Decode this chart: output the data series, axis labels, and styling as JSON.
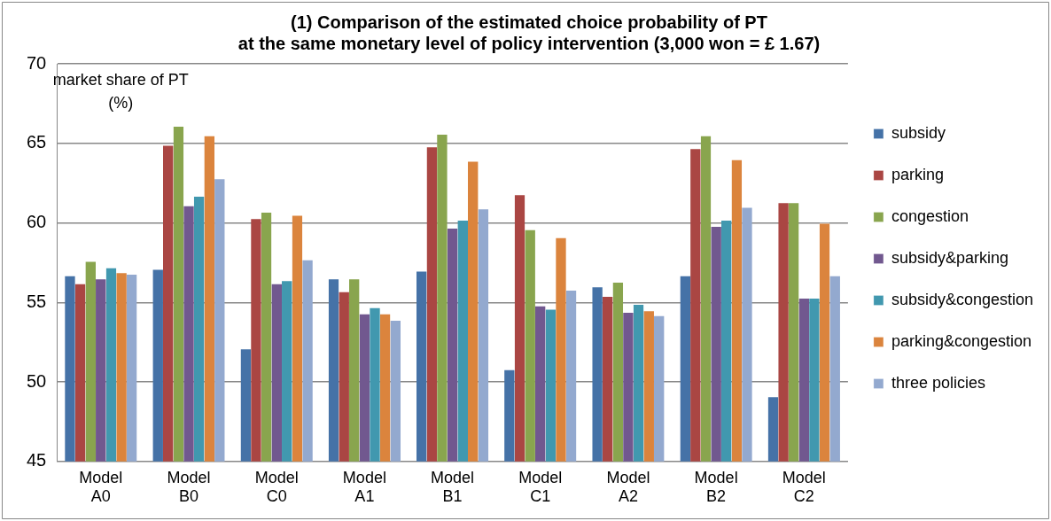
{
  "chart_data": {
    "type": "bar",
    "title": "(1) Comparison of the estimated choice probability of PT\nat the same monetary level of policy intervention (3,000 won = £ 1.67)",
    "ylabel": "market share of PT\n(%)",
    "categories": [
      "Model A0",
      "Model B0",
      "Model C0",
      "Model A1",
      "Model B1",
      "Model C1",
      "Model A2",
      "Model B2",
      "Model C2"
    ],
    "series": [
      {
        "name": "subsidy",
        "color": "#4572a7",
        "values": [
          56.7,
          57.1,
          52.1,
          56.5,
          57.0,
          50.8,
          56.0,
          56.7,
          49.1
        ]
      },
      {
        "name": "parking",
        "color": "#aa4643",
        "values": [
          56.2,
          64.9,
          60.3,
          55.7,
          64.8,
          61.8,
          55.4,
          64.7,
          61.3
        ]
      },
      {
        "name": "congestion",
        "color": "#89a54e",
        "values": [
          57.6,
          66.1,
          60.7,
          56.5,
          65.6,
          59.6,
          56.3,
          65.5,
          61.3
        ]
      },
      {
        "name": "subsidy&parking",
        "color": "#71588f",
        "values": [
          56.5,
          61.1,
          56.2,
          54.3,
          59.7,
          54.8,
          54.4,
          59.8,
          55.3
        ]
      },
      {
        "name": "subsidy&congestion",
        "color": "#4198af",
        "values": [
          57.2,
          61.7,
          56.4,
          54.7,
          60.2,
          54.6,
          54.9,
          60.2,
          55.3
        ]
      },
      {
        "name": "parking&congestion",
        "color": "#db843d",
        "values": [
          56.9,
          65.5,
          60.5,
          54.3,
          63.9,
          59.1,
          54.5,
          64.0,
          60.0
        ]
      },
      {
        "name": "three policies",
        "color": "#93a9cf",
        "values": [
          56.8,
          62.8,
          57.7,
          53.9,
          60.9,
          55.8,
          54.2,
          61.0,
          56.7
        ]
      }
    ],
    "ylim": [
      45,
      70
    ],
    "yticks": [
      45,
      50,
      55,
      60,
      65,
      70
    ],
    "grid": "y",
    "legend": "right"
  }
}
